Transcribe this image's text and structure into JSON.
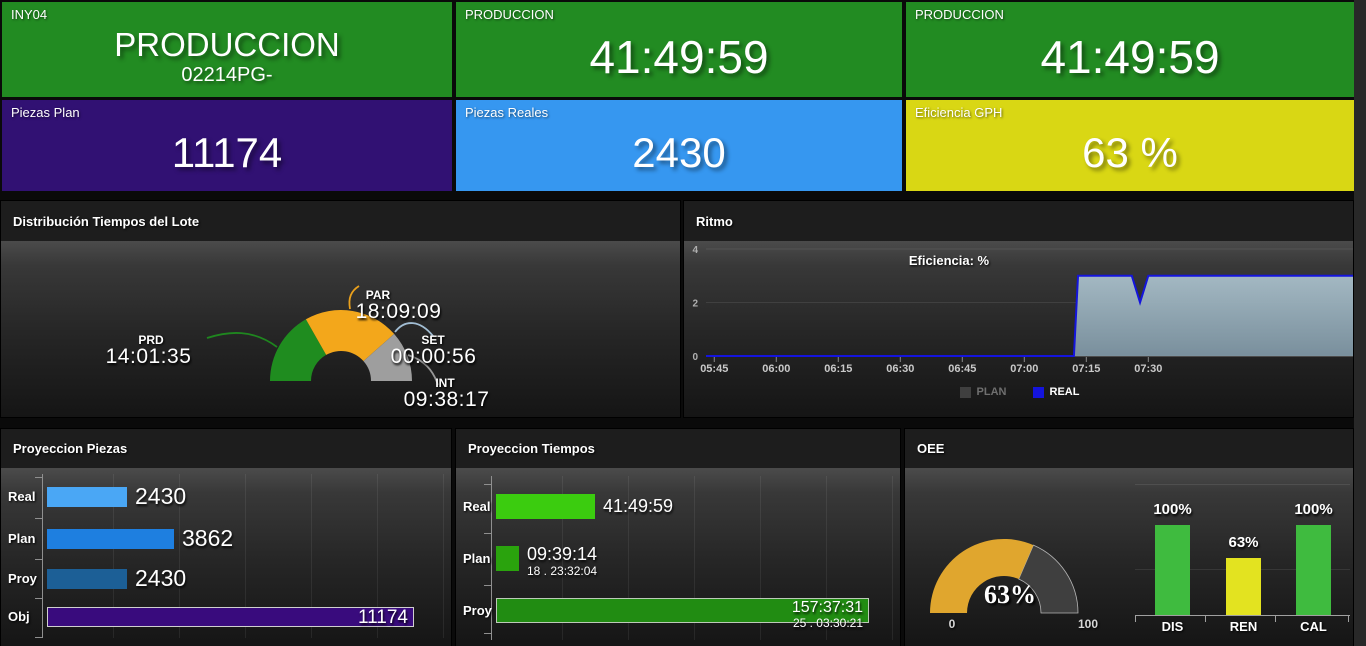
{
  "tiles": [
    {
      "label": "INY04",
      "value": "PRODUCCION",
      "sub": "02214PG-",
      "bg": "#228b22"
    },
    {
      "label": "PRODUCCION",
      "value": "41:49:59",
      "bg": "#228b22"
    },
    {
      "label": "PRODUCCION",
      "value": "41:49:59",
      "bg": "#228b22"
    },
    {
      "label": "Piezas Plan",
      "value": "11174",
      "bg": "#311173"
    },
    {
      "label": "Piezas Reales",
      "value": "2430",
      "bg": "#3697f0"
    },
    {
      "label": "Eficiencia GPH",
      "value": "63 %",
      "bg": "#d9d714"
    }
  ],
  "panels": {
    "distribucion": {
      "title": "Distribución Tiempos del Lote"
    },
    "ritmo": {
      "title": "Ritmo"
    },
    "proyeccion_piezas": {
      "title": "Proyeccion Piezas"
    },
    "proyeccion_tiempos": {
      "title": "Proyeccion Tiempos"
    },
    "oee": {
      "title": "OEE"
    }
  },
  "chart_data": [
    {
      "id": "distribucion_tiempos",
      "type": "pie",
      "variant": "half-donut",
      "segments": [
        {
          "label": "PRD",
          "value": "14:01:35",
          "seconds": 50495,
          "color": "#1f8c1f"
        },
        {
          "label": "PAR",
          "value": "18:09:09",
          "seconds": 65349,
          "color": "#f3a71b"
        },
        {
          "label": "SET",
          "value": "00:00:56",
          "seconds": 56,
          "color": "#a9c6dd"
        },
        {
          "label": "INT",
          "value": "09:38:17",
          "seconds": 34697,
          "color": "#9e9e9e"
        }
      ]
    },
    {
      "id": "ritmo",
      "type": "area",
      "title": "Eficiencia: %",
      "x_ticks": [
        "05:45",
        "06:00",
        "06:15",
        "06:30",
        "06:45",
        "07:00",
        "07:15",
        "07:30"
      ],
      "x_domain": [
        "05:43",
        "08:20"
      ],
      "y_ticks": [
        0,
        2,
        4
      ],
      "ylim": [
        0,
        4
      ],
      "legend_position": "bottom",
      "grid": true,
      "series": [
        {
          "name": "PLAN",
          "color": "#3f3f3f",
          "points": []
        },
        {
          "name": "REAL",
          "color": "#1414dd",
          "fill_top": "#a9bfca",
          "fill_bottom": "#7e95a3",
          "points": [
            [
              "05:43",
              0
            ],
            [
              "07:12",
              0
            ],
            [
              "07:13",
              3
            ],
            [
              "07:26",
              3
            ],
            [
              "07:28",
              2
            ],
            [
              "07:30",
              3
            ],
            [
              "08:20",
              3
            ]
          ]
        }
      ]
    },
    {
      "id": "proyeccion_piezas",
      "type": "bar",
      "orientation": "horizontal",
      "xmax": 12360,
      "grid_step": 2000,
      "bars": [
        {
          "label": "Real",
          "value": 2430,
          "display": "2430",
          "color": "#4aa7f5"
        },
        {
          "label": "Plan",
          "value": 3862,
          "display": "3862",
          "color": "#1e7fe0"
        },
        {
          "label": "Proy",
          "value": 2430,
          "display": "2430",
          "color": "#1c5f96"
        },
        {
          "label": "Obj",
          "value": 11174,
          "display": "11174",
          "color": "#390b7d",
          "value_inside": true,
          "border": "#cfcfcf"
        }
      ]
    },
    {
      "id": "proyeccion_tiempos",
      "type": "bar",
      "orientation": "horizontal",
      "xmax": 617450,
      "bars": [
        {
          "label": "Real",
          "value": 150599,
          "display": "41:49:59",
          "color": "#3bcc0f"
        },
        {
          "label": "Plan",
          "value": 34754,
          "display": "09:39:14",
          "sub": "18 . 23:32:04",
          "color": "#2aa30d"
        },
        {
          "label": "Proy",
          "value": 567451,
          "display": "157:37:31",
          "sub": "25 . 03:30:21",
          "color": "#218c12",
          "value_inside": true,
          "border": "#bccab8"
        }
      ]
    },
    {
      "id": "oee",
      "type": "combo",
      "gauge": {
        "value": 63,
        "max": 100,
        "display": "63%",
        "min_label": "0",
        "max_label": "100",
        "color": "#e0a62e",
        "track": "#3f3f3f"
      },
      "bars": [
        {
          "label": "DIS",
          "value": 100,
          "display": "100%",
          "color": "#3fbb3f"
        },
        {
          "label": "REN",
          "value": 63,
          "display": "63%",
          "color": "#e3e320"
        },
        {
          "label": "CAL",
          "value": 100,
          "display": "100%",
          "color": "#3fbb3f"
        }
      ]
    }
  ]
}
